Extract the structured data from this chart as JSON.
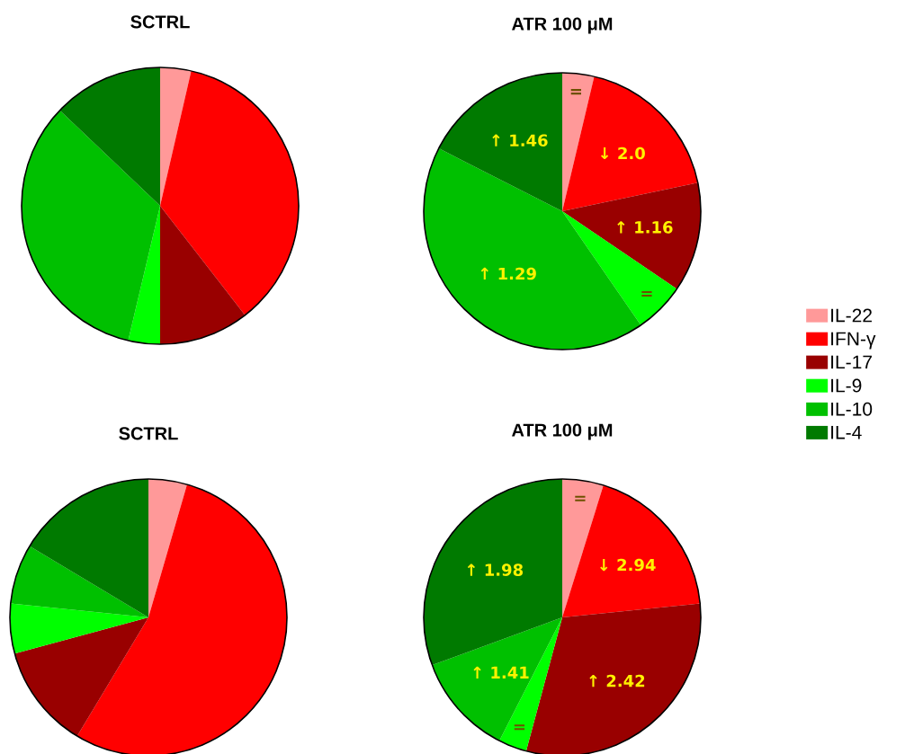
{
  "chart_data": [
    {
      "type": "pie",
      "title": "SCTRL",
      "categories": [
        null,
        null,
        null,
        null,
        null,
        null
      ],
      "values": [
        3.6,
        35.9,
        10.5,
        3.7,
        33.4,
        12.9
      ],
      "colors": [
        "#ff9999",
        "#ff0000",
        "#990000",
        "#00ff00",
        "#00c000",
        "#007a00"
      ]
    },
    {
      "type": "pie",
      "title": "ATR 100 μM",
      "categories": [
        "IL-22",
        "IFN-γ",
        "IL-17",
        "IL-9",
        "IL-10",
        "IL-4"
      ],
      "values": [
        3.7,
        18.0,
        12.8,
        5.9,
        42.1,
        17.5
      ],
      "colors": [
        "#ff9999",
        "#ff0000",
        "#990000",
        "#00ff00",
        "#00c000",
        "#007a00"
      ],
      "legend": "right",
      "annotations": [
        {
          "text": "=",
          "x": "IL-22"
        },
        {
          "text": "↓ 2.0",
          "x": "IFN-γ"
        },
        {
          "text": "↑ 1.16",
          "x": "IL-17"
        },
        {
          "text": "=",
          "x": "IL-9"
        },
        {
          "text": "↑ 1.29",
          "x": "IL-10"
        },
        {
          "text": "↑ 1.46",
          "x": "IL-4"
        }
      ]
    },
    {
      "type": "pie",
      "title": "SCTRL",
      "categories": [
        null,
        null,
        null,
        null,
        null,
        null
      ],
      "values": [
        4.5,
        54.1,
        12.2,
        5.8,
        7.0,
        16.4
      ],
      "colors": [
        "#ff9999",
        "#ff0000",
        "#990000",
        "#00ff00",
        "#00c000",
        "#007a00"
      ]
    },
    {
      "type": "pie",
      "title": "ATR 100 μM",
      "categories": [
        null,
        null,
        null,
        null,
        null,
        null
      ],
      "values": [
        4.8,
        18.6,
        30.8,
        3.3,
        11.9,
        30.6
      ],
      "colors": [
        "#ff9999",
        "#ff0000",
        "#990000",
        "#00ff00",
        "#00c000",
        "#007a00"
      ],
      "annotations": [
        "=",
        "↓ 2.94",
        "↑ 2.42",
        "=",
        "↑ 1.41",
        "↑ 1.98"
      ]
    }
  ]
}
